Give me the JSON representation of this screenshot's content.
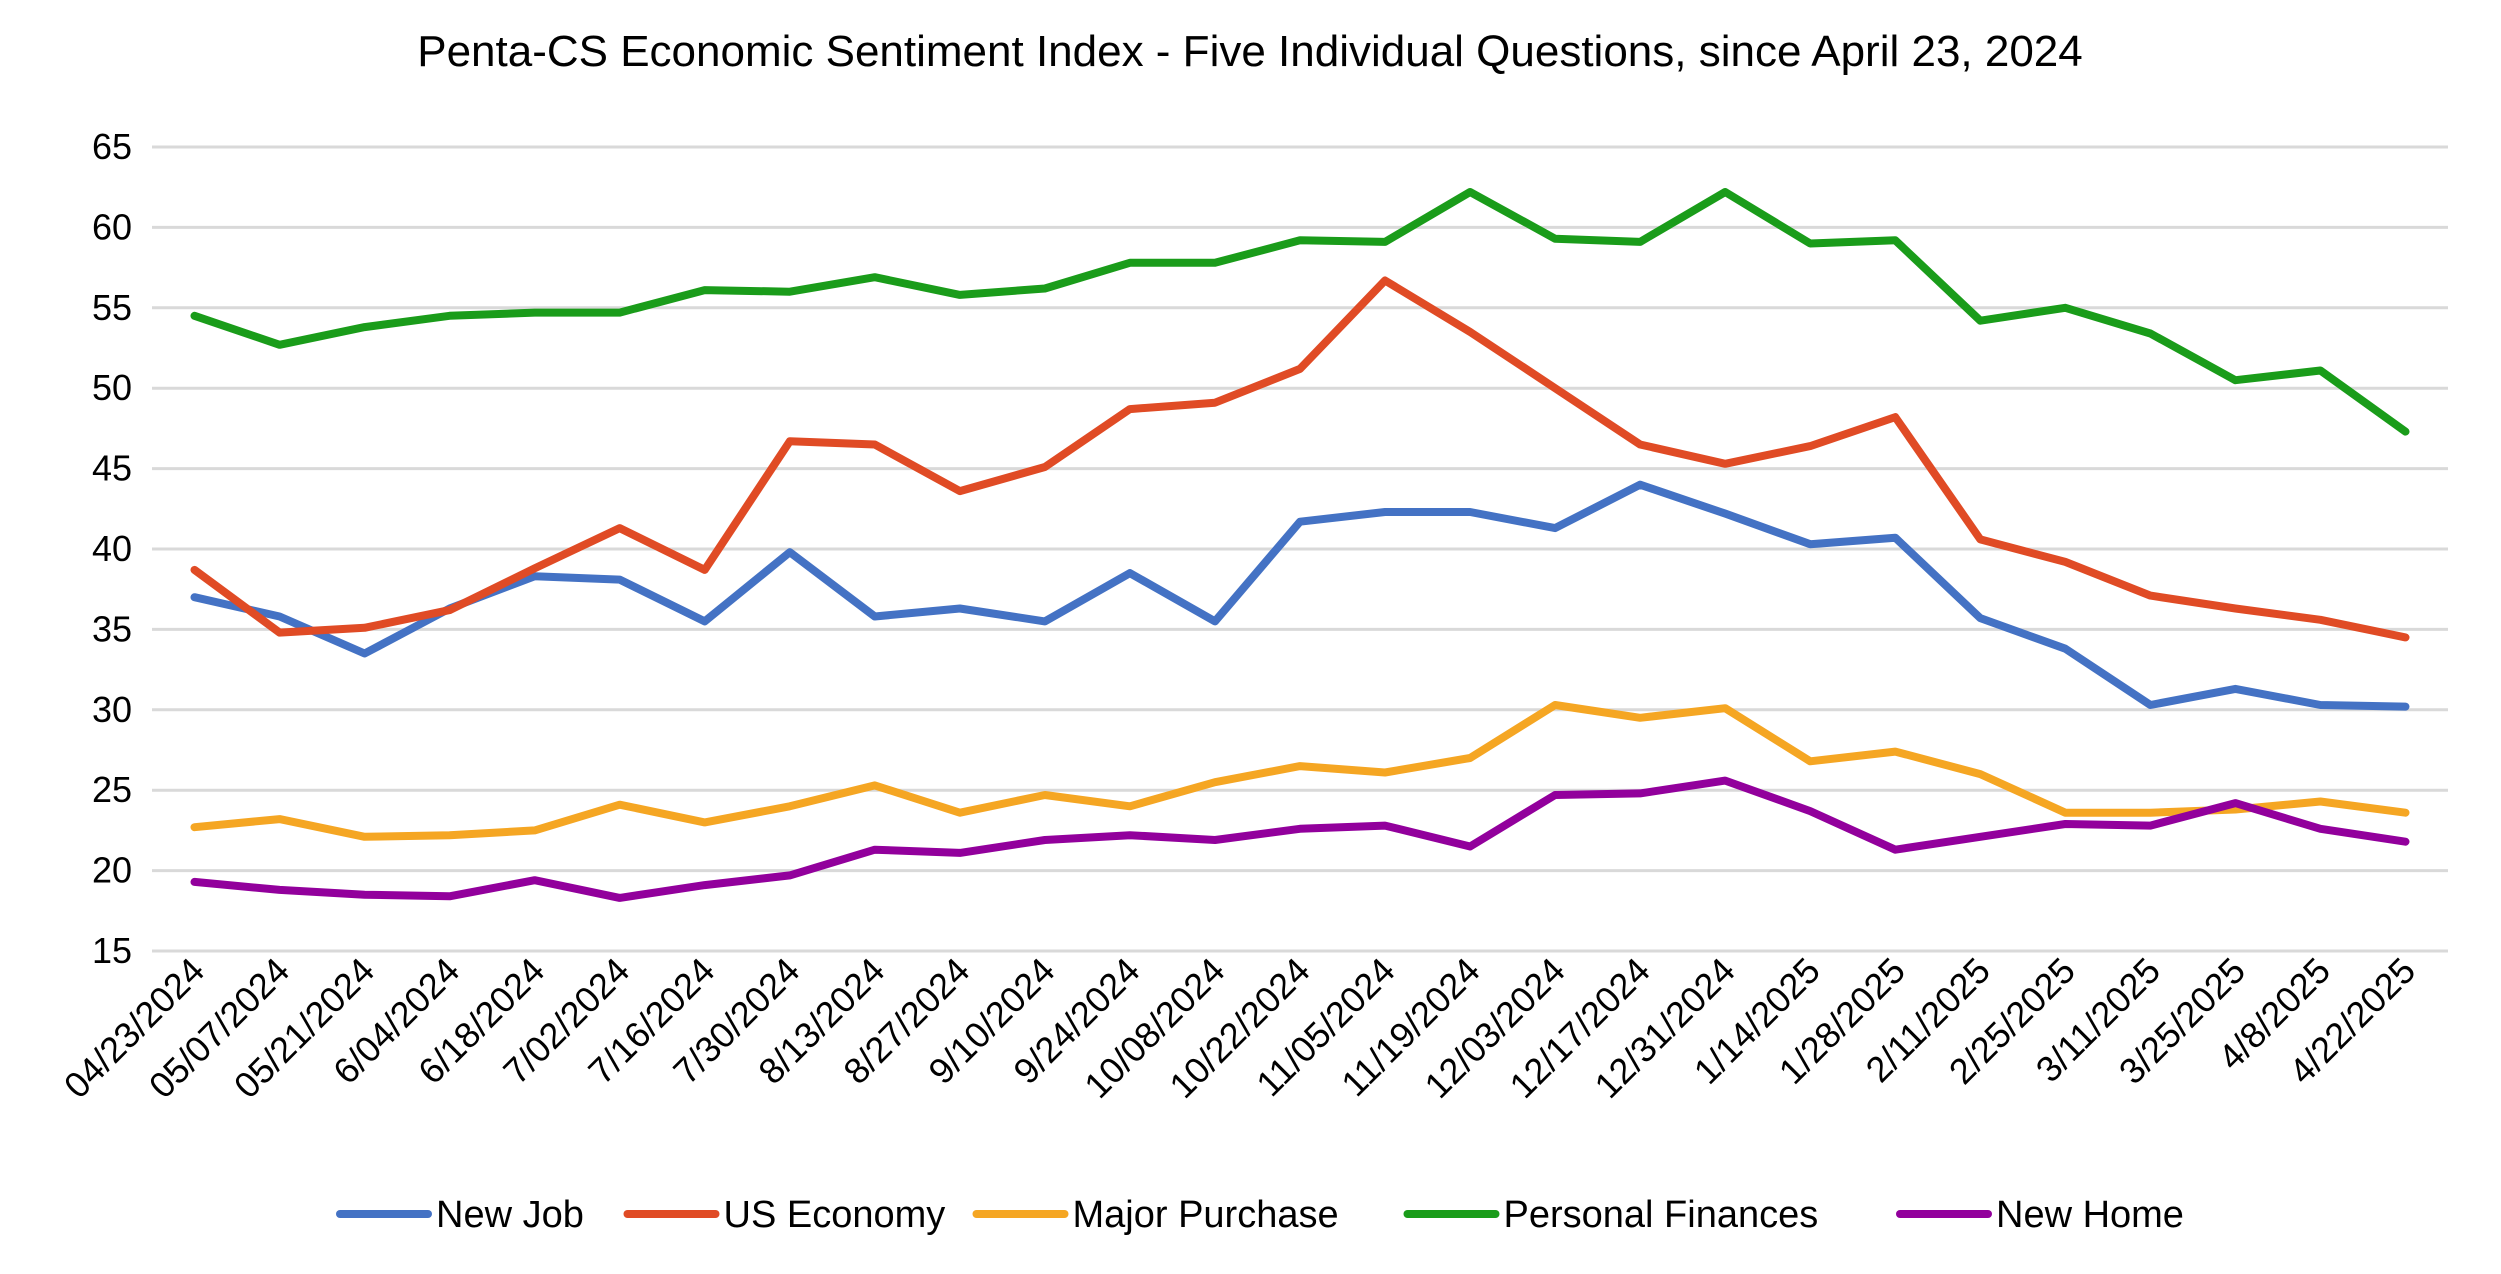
{
  "chart_data": {
    "type": "line",
    "title": "Penta-CS Economic Sentiment Index - Five Individual Questions, since April 23, 2024",
    "xlabel": "",
    "ylabel": "",
    "ylim": [
      15,
      65
    ],
    "yticks": [
      15,
      20,
      25,
      30,
      35,
      40,
      45,
      50,
      55,
      60,
      65
    ],
    "grid": true,
    "legend_position": "bottom",
    "categories": [
      "04/23/2024",
      "05/07/2024",
      "05/21/2024",
      "6/04/2024",
      "6/18/2024",
      "7/02/2024",
      "7/16/2024",
      "7/30/2024",
      "8/13/2024",
      "8/27/2024",
      "9/10/2024",
      "9/24/2024",
      "10/08/2024",
      "10/22/2024",
      "11/05/2024",
      "11/19/2024",
      "12/03/2024",
      "12/17/2024",
      "12/31/2024",
      "1/14/2025",
      "1/28/2025",
      "2/11/2025",
      "2/25/2025",
      "3/11/2025",
      "3/25/2025",
      "4/8/2025",
      "4/22/2025"
    ],
    "series": [
      {
        "name": "New Job",
        "color": "#4472C4",
        "values": [
          37.0,
          35.8,
          33.5,
          36.3,
          38.3,
          38.1,
          35.5,
          39.8,
          35.8,
          36.3,
          35.5,
          38.5,
          35.5,
          41.7,
          42.3,
          42.3,
          41.3,
          44.0,
          42.2,
          40.3,
          40.7,
          35.7,
          33.8,
          30.3,
          31.3,
          30.3,
          30.2
        ]
      },
      {
        "name": "US Economy",
        "color": "#E04B25",
        "values": [
          38.7,
          34.8,
          35.1,
          36.2,
          38.8,
          41.3,
          38.7,
          46.7,
          46.5,
          43.6,
          45.1,
          48.7,
          49.1,
          51.2,
          56.7,
          53.5,
          50.0,
          46.5,
          45.3,
          46.4,
          48.2,
          40.6,
          39.2,
          37.1,
          36.3,
          35.6,
          34.5
        ]
      },
      {
        "name": "Major Purchase",
        "color": "#F5A623",
        "values": [
          22.7,
          23.2,
          22.1,
          22.2,
          22.5,
          24.1,
          23.0,
          24.0,
          25.3,
          23.6,
          24.7,
          24.0,
          25.5,
          26.5,
          26.1,
          27.0,
          30.3,
          29.5,
          30.1,
          26.8,
          27.4,
          26.0,
          23.6,
          23.6,
          23.8,
          24.3,
          23.6
        ]
      },
      {
        "name": "Personal Finances",
        "color": "#1A9C1A",
        "values": [
          54.5,
          52.7,
          53.8,
          54.5,
          54.7,
          54.7,
          56.1,
          56.0,
          56.9,
          55.8,
          56.2,
          57.8,
          57.8,
          59.2,
          59.1,
          62.2,
          59.3,
          59.1,
          62.2,
          59.0,
          59.2,
          54.2,
          55.0,
          53.4,
          50.5,
          51.1,
          47.3
        ]
      },
      {
        "name": "New Home",
        "color": "#92009C",
        "values": [
          19.3,
          18.8,
          18.5,
          18.4,
          19.4,
          18.3,
          19.1,
          19.7,
          21.3,
          21.1,
          21.9,
          22.2,
          21.9,
          22.6,
          22.8,
          21.5,
          24.7,
          24.8,
          25.6,
          23.7,
          21.3,
          22.1,
          22.9,
          22.8,
          24.2,
          22.6,
          21.8
        ]
      }
    ]
  }
}
